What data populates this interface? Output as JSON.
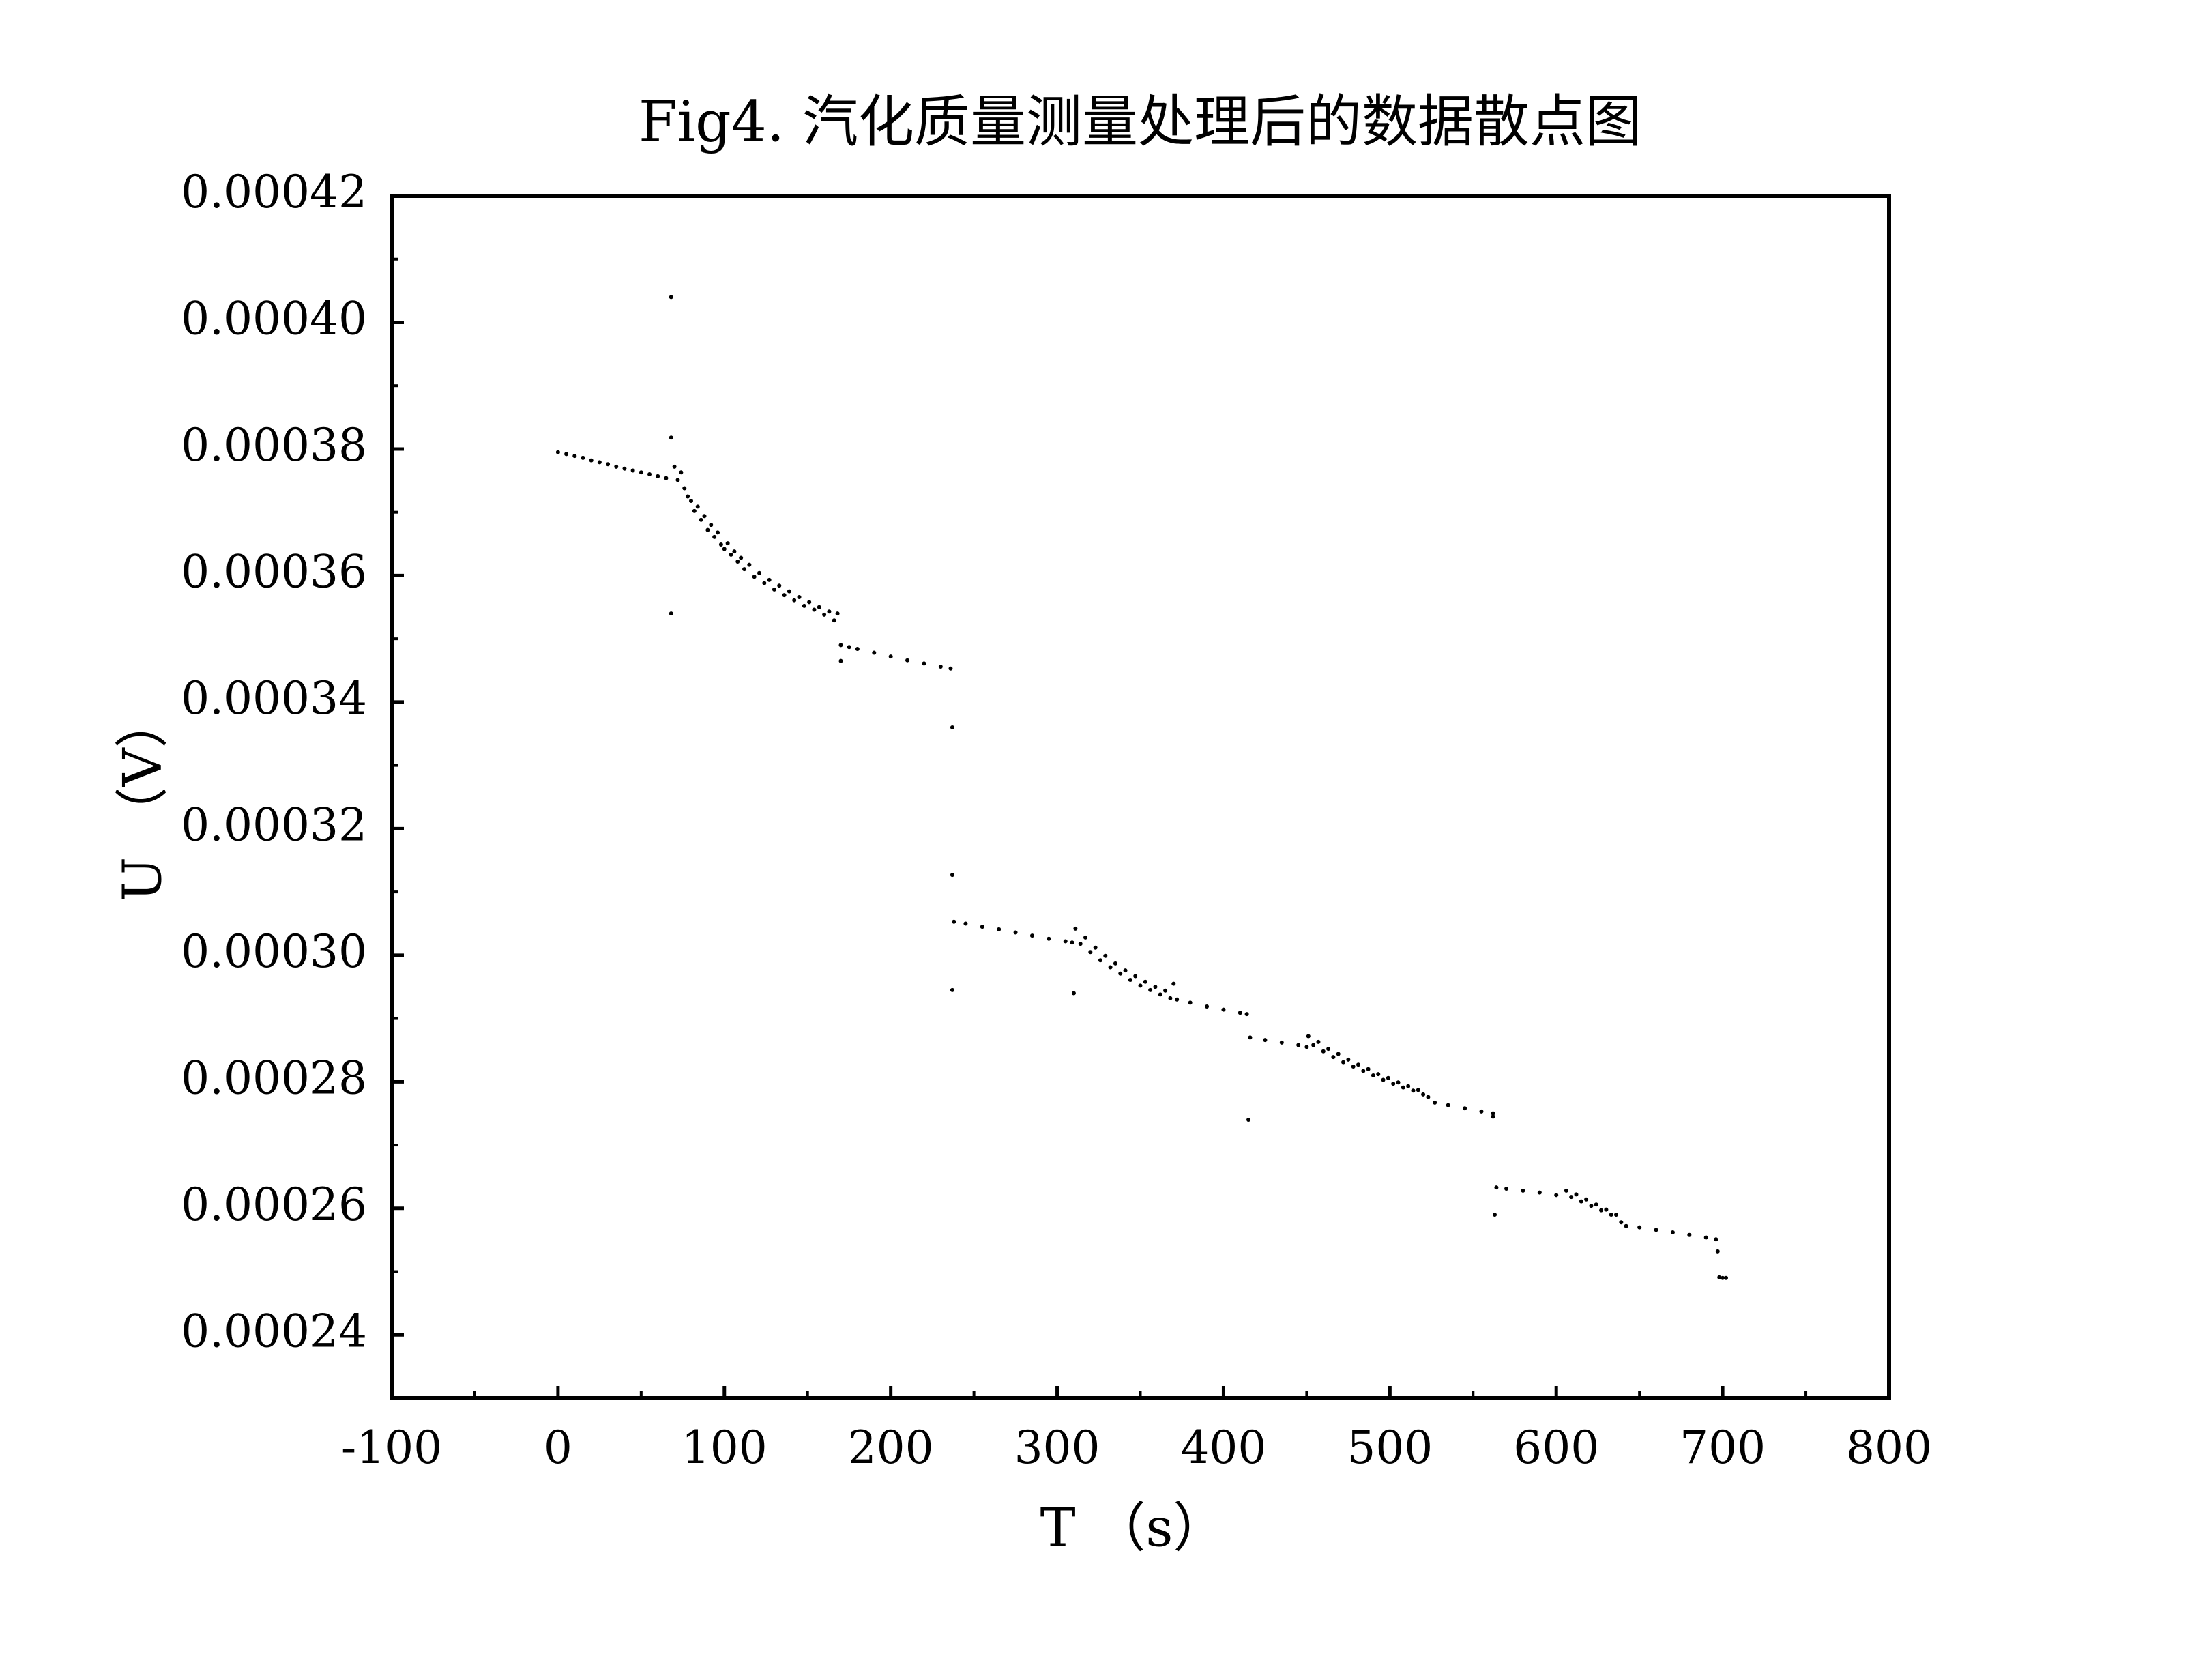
{
  "chart_data": {
    "type": "scatter",
    "title": "Fig4. 汽化质量测量处理后的数据散点图",
    "xlabel": "T （s）",
    "ylabel": "U （V）",
    "color": "#000000",
    "xlim": [
      -100,
      800
    ],
    "xticks": [
      -100,
      0,
      100,
      200,
      300,
      400,
      500,
      600,
      700,
      800
    ],
    "ylim": [
      0.00023,
      0.00042
    ],
    "yticks": [
      0.00024,
      0.00026,
      0.00028,
      {
        "value": 0.0003,
        "label": "0.00030"
      },
      0.00032,
      0.00034,
      0.00036,
      0.00038,
      {
        "value": 0.0004,
        "label": "0.00040"
      },
      0.00042
    ],
    "x": [
      0,
      5,
      10,
      15,
      20,
      25,
      30,
      35,
      40,
      45,
      50,
      55,
      60,
      65,
      70,
      72,
      74,
      76,
      78,
      80,
      82,
      84,
      86,
      88,
      90,
      92,
      94,
      96,
      98,
      100,
      102,
      104,
      106,
      108,
      110,
      112,
      115,
      118,
      121,
      124,
      127,
      130,
      133,
      136,
      139,
      142,
      145,
      148,
      151,
      154,
      157,
      160,
      163,
      166,
      168,
      68,
      68,
      68,
      170,
      175,
      180,
      190,
      200,
      210,
      220,
      230,
      236,
      170,
      237,
      237,
      237,
      238,
      245,
      255,
      265,
      275,
      285,
      295,
      305,
      309,
      310,
      311,
      314,
      317,
      320,
      323,
      326,
      329,
      332,
      335,
      338,
      341,
      344,
      347,
      350,
      353,
      356,
      359,
      362,
      365,
      368,
      370,
      372,
      380,
      390,
      400,
      410,
      414,
      415,
      416,
      425,
      435,
      445,
      450,
      451,
      454,
      457,
      460,
      463,
      466,
      469,
      472,
      475,
      478,
      481,
      484,
      487,
      490,
      493,
      496,
      499,
      502,
      505,
      508,
      511,
      514,
      517,
      520,
      523,
      527,
      535,
      545,
      555,
      562,
      562,
      564,
      570,
      580,
      590,
      600,
      563,
      606,
      609,
      612,
      615,
      618,
      621,
      624,
      627,
      630,
      633,
      636,
      639,
      642,
      650,
      660,
      670,
      680,
      690,
      696,
      697,
      698,
      700,
      702
    ],
    "values": [
      0.0003795,
      0.0003792,
      0.0003789,
      0.0003786,
      0.0003782,
      0.0003779,
      0.0003776,
      0.0003772,
      0.0003769,
      0.0003766,
      0.0003763,
      0.000376,
      0.0003757,
      0.0003754,
      0.0003772,
      0.0003751,
      0.0003763,
      0.0003738,
      0.0003725,
      0.0003718,
      0.0003702,
      0.0003709,
      0.0003688,
      0.0003694,
      0.0003672,
      0.000368,
      0.0003661,
      0.0003668,
      0.0003649,
      0.0003642,
      0.0003651,
      0.0003633,
      0.0003638,
      0.0003622,
      0.0003628,
      0.000361,
      0.0003617,
      0.0003598,
      0.0003604,
      0.0003588,
      0.0003593,
      0.0003578,
      0.0003584,
      0.0003569,
      0.0003575,
      0.0003561,
      0.0003566,
      0.0003552,
      0.0003558,
      0.0003546,
      0.000355,
      0.0003538,
      0.0003543,
      0.0003529,
      0.000354,
      0.000404,
      0.0003818,
      0.000354,
      0.000349,
      0.0003487,
      0.0003484,
      0.0003478,
      0.0003472,
      0.0003466,
      0.0003461,
      0.0003456,
      0.0003453,
      0.0003465,
      0.000336,
      0.0003127,
      0.0002945,
      0.0003053,
      0.000305,
      0.0003045,
      0.0003041,
      0.0003036,
      0.0003031,
      0.0003026,
      0.0003022,
      0.000302,
      0.000294,
      0.0003042,
      0.0003018,
      0.0003028,
      0.0003005,
      0.0003012,
      0.0002992,
      0.0002999,
      0.0002981,
      0.0002987,
      0.0002971,
      0.0002976,
      0.0002961,
      0.0002967,
      0.0002952,
      0.0002958,
      0.0002945,
      0.000295,
      0.0002938,
      0.0002944,
      0.0002932,
      0.0002955,
      0.000293,
      0.0002925,
      0.0002919,
      0.0002914,
      0.0002909,
      0.0002907,
      0.000274,
      0.000287,
      0.0002866,
      0.0002862,
      0.0002858,
      0.0002855,
      0.0002872,
      0.0002858,
      0.0002863,
      0.0002848,
      0.0002852,
      0.0002839,
      0.0002844,
      0.0002831,
      0.0002835,
      0.0002824,
      0.0002827,
      0.0002817,
      0.000282,
      0.000281,
      0.0002812,
      0.0002803,
      0.0002806,
      0.0002797,
      0.0002799,
      0.0002791,
      0.0002793,
      0.0002786,
      0.0002787,
      0.000278,
      0.0002776,
      0.0002767,
      0.0002763,
      0.0002758,
      0.0002753,
      0.000275,
      0.0002745,
      0.0002633,
      0.0002631,
      0.0002628,
      0.0002625,
      0.0002621,
      0.000259,
      0.0002628,
      0.0002618,
      0.0002622,
      0.0002611,
      0.0002614,
      0.0002604,
      0.0002606,
      0.0002597,
      0.0002598,
      0.000259,
      0.000259,
      0.0002578,
      0.0002572,
      0.000257,
      0.0002566,
      0.0002562,
      0.0002558,
      0.0002554,
      0.0002551,
      0.0002532,
      0.0002491,
      0.000249,
      0.000249
    ]
  }
}
